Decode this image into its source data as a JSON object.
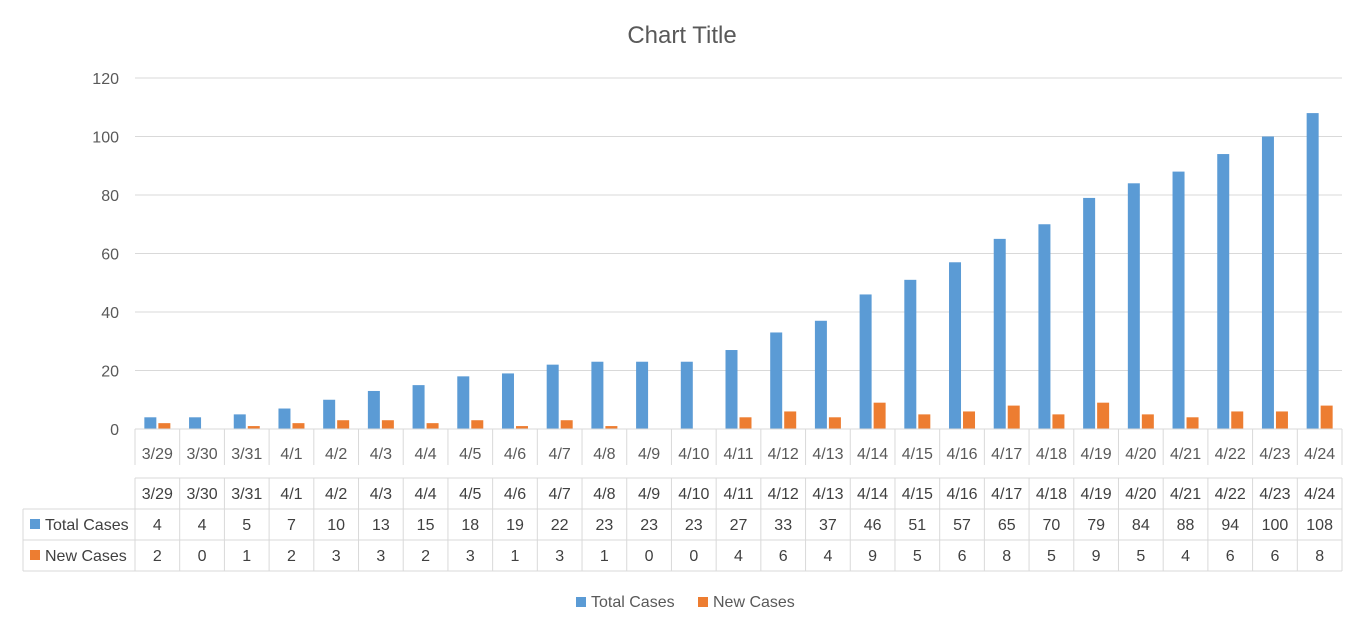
{
  "chart_data": {
    "type": "bar",
    "title": "Chart Title",
    "categories": [
      "3/29",
      "3/30",
      "3/31",
      "4/1",
      "4/2",
      "4/3",
      "4/4",
      "4/5",
      "4/6",
      "4/7",
      "4/8",
      "4/9",
      "4/10",
      "4/11",
      "4/12",
      "4/13",
      "4/14",
      "4/15",
      "4/16",
      "4/17",
      "4/18",
      "4/19",
      "4/20",
      "4/21",
      "4/22",
      "4/23",
      "4/24"
    ],
    "series": [
      {
        "name": "Total Cases",
        "color": "#5B9BD5",
        "values": [
          4,
          4,
          5,
          7,
          10,
          13,
          15,
          18,
          19,
          22,
          23,
          23,
          23,
          27,
          33,
          37,
          46,
          51,
          57,
          65,
          70,
          79,
          84,
          88,
          94,
          100,
          108
        ]
      },
      {
        "name": "New Cases",
        "color": "#ED7D31",
        "values": [
          2,
          0,
          1,
          2,
          3,
          3,
          2,
          3,
          1,
          3,
          1,
          0,
          0,
          4,
          6,
          4,
          9,
          5,
          6,
          8,
          5,
          9,
          5,
          4,
          6,
          6,
          8
        ]
      }
    ],
    "ylim": [
      0,
      120
    ],
    "yticks": [
      0,
      20,
      40,
      60,
      80,
      100,
      120
    ],
    "grid": true,
    "legend": "bottom",
    "data_table": true
  }
}
